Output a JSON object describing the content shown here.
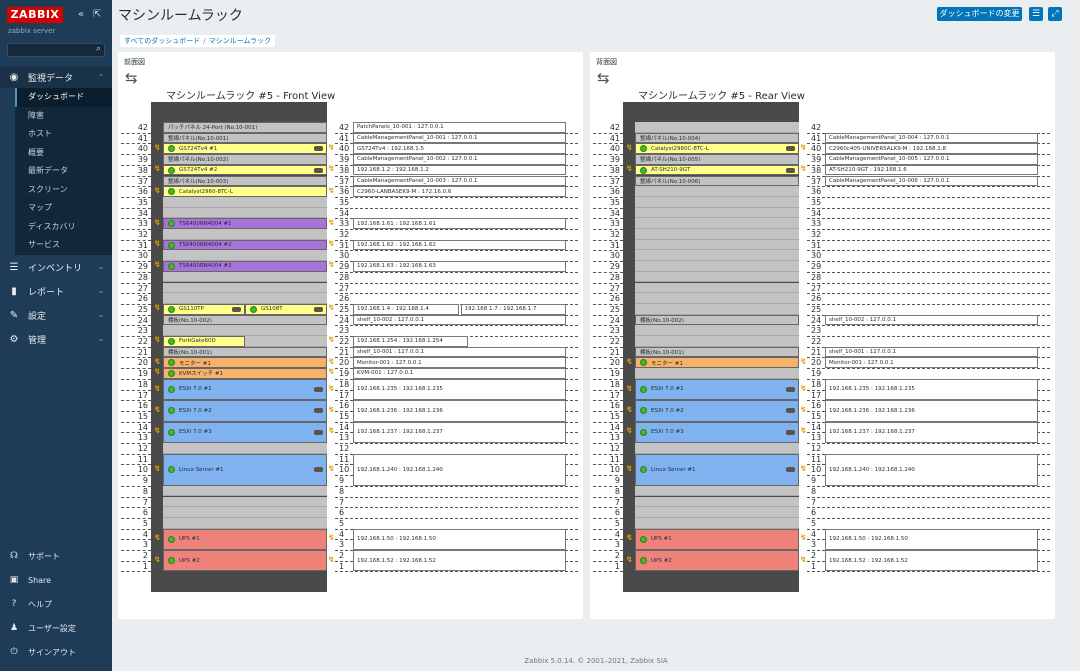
{
  "app": {
    "logo": "ZABBIX",
    "server": "zabbix server"
  },
  "nav": {
    "monitoring": "監視データ",
    "sub": [
      "ダッシュボード",
      "障害",
      "ホスト",
      "概要",
      "最新データ",
      "スクリーン",
      "マップ",
      "ディスカバリ",
      "サービス"
    ],
    "inventory": "インベントリ",
    "reports": "レポート",
    "config": "設定",
    "admin": "管理",
    "footer": [
      "サポート",
      "Share",
      "ヘルプ",
      "ユーザー設定",
      "サインアウト"
    ]
  },
  "page": {
    "title": "マシンルームラック",
    "edit_btn": "ダッシュボードの変更"
  },
  "breadcrumb": [
    "すべてのダッシュボード",
    "マシンルームラック"
  ],
  "front": {
    "header": "前面図",
    "title": "マシンルームラック #5 - Front View",
    "devices": [
      {
        "top": 42,
        "h": 1,
        "label": "パッチパネル 24-Port (No.10-001)",
        "bg": "#c3c3c3",
        "led": false,
        "conn": false,
        "info": "PatchPanels_10-001 : 127.0.0.1",
        "bolt": false
      },
      {
        "top": 41,
        "h": 1,
        "label": "整線パネル(No.10-001)",
        "bg": "#c3c3c3",
        "led": false,
        "conn": false,
        "info": "CableManagementPanel_10-001 : 127.0.0.1",
        "bolt": false
      },
      {
        "top": 40,
        "h": 1,
        "label": "GS724Tv4 #1",
        "bg": "#ffff8a",
        "led": true,
        "conn": true,
        "info": "GS724Tv4 : 192.168.1.5",
        "bolt": true
      },
      {
        "top": 39,
        "h": 1,
        "label": "整線パネル(No.10-002)",
        "bg": "#c3c3c3",
        "led": false,
        "conn": false,
        "info": "CableManagementPanel_10-002 : 127.0.0.1",
        "bolt": false
      },
      {
        "top": 38,
        "h": 1,
        "label": "GS724Tv4 #2",
        "bg": "#ffff8a",
        "led": true,
        "conn": true,
        "info": "192.168.1.2 : 192.168.1.2",
        "bolt": true
      },
      {
        "top": 37,
        "h": 1,
        "label": "整線パネル(No.10-003)",
        "bg": "#c3c3c3",
        "led": false,
        "conn": false,
        "info": "CableManagementPanel_10-003 : 127.0.0.1",
        "bolt": false
      },
      {
        "top": 36,
        "h": 1,
        "label": "Catalyst2960-8TC-L",
        "bg": "#ffff8a",
        "led": true,
        "conn": false,
        "info": "C2960-LANBASEK9-M : 172.16.0.6",
        "bolt": true
      },
      {
        "top": 33,
        "h": 1,
        "label": "TS6400RN4004 #1",
        "bg": "#a874dc",
        "led": true,
        "conn": false,
        "info": "192.168.1.61 : 192.168.1.61",
        "bolt": true
      },
      {
        "top": 31,
        "h": 1,
        "label": "TS6400RN4004 #2",
        "bg": "#a874dc",
        "led": true,
        "conn": false,
        "info": "192.168.1.62 : 192.168.1.62",
        "bolt": true
      },
      {
        "top": 29,
        "h": 1,
        "label": "TS6400RN4004 #3",
        "bg": "#a874dc",
        "led": true,
        "conn": false,
        "info": "192.168.1.63 : 192.168.1.63",
        "bolt": true
      },
      {
        "top": 24,
        "h": 1,
        "label": "棚板(No.10-002)",
        "bg": "#c3c3c3",
        "led": false,
        "conn": false,
        "info": "shelf_10-002 : 127.0.0.1",
        "bolt": false
      },
      {
        "top": 22,
        "h": 1,
        "label": "FortiGate60D",
        "bg": "#ffff8a",
        "led": true,
        "conn": false,
        "info": "192.168.1.254 : 192.168.1.254",
        "bolt": true,
        "half": true
      },
      {
        "top": 21,
        "h": 1,
        "label": "棚板(No.10-001)",
        "bg": "#c3c3c3",
        "led": false,
        "conn": false,
        "info": "shelf_10-001 : 127.0.0.1",
        "bolt": false
      },
      {
        "top": 20,
        "h": 1,
        "label": "モニター #1",
        "bg": "#f6b26b",
        "led": true,
        "conn": false,
        "info": "Monitor-001 : 127.0.0.1",
        "bolt": true
      },
      {
        "top": 19,
        "h": 1,
        "label": "KVMスイッチ #1",
        "bg": "#f6b26b",
        "led": true,
        "conn": false,
        "info": "KVM-001 : 127.0.0.1",
        "bolt": true
      },
      {
        "top": 18,
        "h": 2,
        "label": "ESXi 7.0 #1",
        "bg": "#7fb2ef",
        "led": true,
        "conn": true,
        "info": "192.168.1.235 : 192.168.1.235",
        "bolt": true
      },
      {
        "top": 16,
        "h": 2,
        "label": "ESXi 7.0 #2",
        "bg": "#7fb2ef",
        "led": true,
        "conn": true,
        "info": "192.168.1.236 : 192.168.1.236",
        "bolt": true
      },
      {
        "top": 14,
        "h": 2,
        "label": "ESXi 7.0 #3",
        "bg": "#7fb2ef",
        "led": true,
        "conn": true,
        "info": "192.168.1.237 : 192.168.1.237",
        "bolt": true
      },
      {
        "top": 11,
        "h": 3,
        "label": "Linux Server #1",
        "bg": "#7fb2ef",
        "led": true,
        "conn": true,
        "info": "192.168.1.240 : 192.168.1.240",
        "bolt": true
      },
      {
        "top": 4,
        "h": 2,
        "label": "UPS #1",
        "bg": "#ef827a",
        "led": true,
        "conn": false,
        "info": "192.168.1.50 : 192.168.1.50",
        "bolt": true
      },
      {
        "top": 2,
        "h": 2,
        "label": "UPS #2",
        "bg": "#ef827a",
        "led": true,
        "conn": false,
        "info": "192.168.1.52 : 192.168.1.52",
        "bolt": true
      }
    ],
    "pair": {
      "top": 25,
      "left": "GS110TP",
      "right": "GS108T",
      "info1": "192.168.1.4 : 192.168.1.4",
      "info2": "192.168.1.7 : 192.168.1.7"
    }
  },
  "rear": {
    "header": "背面図",
    "title": "マシンルームラック #5 - Rear View",
    "devices": [
      {
        "top": 41,
        "h": 1,
        "label": "整線パネル(No.10-004)",
        "bg": "#c3c3c3",
        "led": false,
        "conn": false,
        "info": "CableManagementPanel_10-004 : 127.0.0.1",
        "bolt": false
      },
      {
        "top": 40,
        "h": 1,
        "label": "Catalyst2960C-8TC-L",
        "bg": "#ffff8a",
        "led": true,
        "conn": true,
        "info": "C2960c405-UNIVERSALK9-M : 192.168.1.8",
        "bolt": true
      },
      {
        "top": 39,
        "h": 1,
        "label": "整線パネル(No.10-005)",
        "bg": "#c3c3c3",
        "led": false,
        "conn": false,
        "info": "CableManagementPanel_10-005 : 127.0.0.1",
        "bolt": false
      },
      {
        "top": 38,
        "h": 1,
        "label": "AT-SH210-9GT",
        "bg": "#ffff8a",
        "led": true,
        "conn": true,
        "info": "AT-SH210-9GT : 192.168.1.6",
        "bolt": true
      },
      {
        "top": 37,
        "h": 1,
        "label": "整線パネル(No.10-006)",
        "bg": "#c3c3c3",
        "led": false,
        "conn": false,
        "info": "CableManagementPanel_10-006 : 127.0.0.1",
        "bolt": false
      },
      {
        "top": 24,
        "h": 1,
        "label": "棚板(No.10-002)",
        "bg": "#c3c3c3",
        "led": false,
        "conn": false,
        "info": "shelf_10-002 : 127.0.0.1",
        "bolt": false
      },
      {
        "top": 21,
        "h": 1,
        "label": "棚板(No.10-001)",
        "bg": "#c3c3c3",
        "led": false,
        "conn": false,
        "info": "shelf_10-001 : 127.0.0.1",
        "bolt": false
      },
      {
        "top": 20,
        "h": 1,
        "label": "モニター #1",
        "bg": "#f6b26b",
        "led": true,
        "conn": false,
        "info": "Monitor-001 : 127.0.0.1",
        "bolt": true
      },
      {
        "top": 18,
        "h": 2,
        "label": "ESXi 7.0 #1",
        "bg": "#7fb2ef",
        "led": true,
        "conn": true,
        "info": "192.168.1.235 : 192.168.1.235",
        "bolt": true
      },
      {
        "top": 16,
        "h": 2,
        "label": "ESXi 7.0 #2",
        "bg": "#7fb2ef",
        "led": true,
        "conn": true,
        "info": "192.168.1.236 : 192.168.1.236",
        "bolt": true
      },
      {
        "top": 14,
        "h": 2,
        "label": "ESXi 7.0 #3",
        "bg": "#7fb2ef",
        "led": true,
        "conn": true,
        "info": "192.168.1.237 : 192.168.1.237",
        "bolt": true
      },
      {
        "top": 11,
        "h": 3,
        "label": "Linux Server #1",
        "bg": "#7fb2ef",
        "led": true,
        "conn": true,
        "info": "192.168.1.240 : 192.168.1.240",
        "bolt": true
      },
      {
        "top": 4,
        "h": 2,
        "label": "UPS #1",
        "bg": "#ef827a",
        "led": true,
        "conn": false,
        "info": "192.168.1.50 : 192.168.1.50",
        "bolt": true
      },
      {
        "top": 2,
        "h": 2,
        "label": "UPS #2",
        "bg": "#ef827a",
        "led": true,
        "conn": false,
        "info": "192.168.1.52 : 192.168.1.52",
        "bolt": true
      }
    ]
  },
  "footer": "Zabbix 5.0.14. © 2001–2021, Zabbix SIA"
}
